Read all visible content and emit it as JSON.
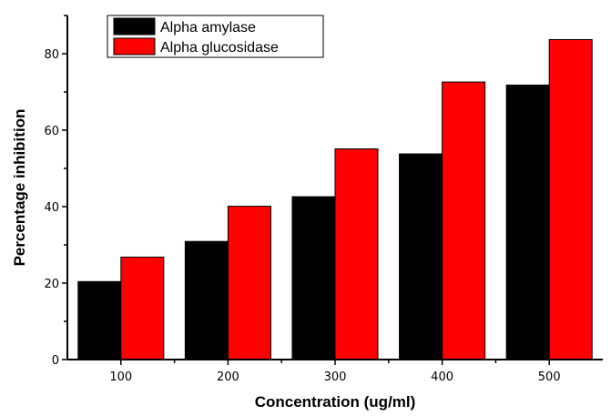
{
  "chart_data": {
    "type": "bar",
    "title": "",
    "xlabel": "Concentration (ug/ml)",
    "ylabel": "Percentage inhibition",
    "categories": [
      "100",
      "200",
      "300",
      "400",
      "500"
    ],
    "x": [
      100,
      200,
      300,
      400,
      500
    ],
    "series": [
      {
        "name": "Alpha amylase",
        "color": "#000000",
        "values": [
          20.4,
          30.9,
          42.6,
          53.8,
          71.8
        ]
      },
      {
        "name": "Alpha glucosidase",
        "color": "#ff0000",
        "values": [
          26.8,
          40.1,
          55.1,
          72.6,
          83.7
        ]
      }
    ],
    "ylim": [
      0,
      90
    ],
    "xlim": [
      50,
      550
    ],
    "yticks": [
      0,
      20,
      40,
      60,
      80
    ],
    "ytick_labels": [
      "0",
      "20",
      "40",
      "60",
      "80"
    ],
    "bar_width": 40,
    "grid": false,
    "legend_position": "top-left"
  }
}
